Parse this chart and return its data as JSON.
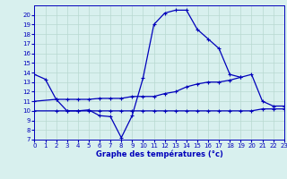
{
  "title": "Graphe des températures (°c)",
  "bg_color": "#d8f0ee",
  "line_color": "#0000bb",
  "grid_color": "#b8d8d0",
  "ylim": [
    7,
    21
  ],
  "xlim": [
    0,
    23
  ],
  "yticks": [
    7,
    8,
    9,
    10,
    11,
    12,
    13,
    14,
    15,
    16,
    17,
    18,
    19,
    20
  ],
  "xticks": [
    0,
    1,
    2,
    3,
    4,
    5,
    6,
    7,
    8,
    9,
    10,
    11,
    12,
    13,
    14,
    15,
    16,
    17,
    18,
    19,
    20,
    21,
    22,
    23
  ],
  "curve_main_x": [
    0,
    1,
    2,
    3,
    4,
    5,
    6,
    7,
    8,
    9,
    10,
    11,
    12,
    13,
    14,
    15,
    16,
    17,
    18,
    19
  ],
  "curve_main_y": [
    13.8,
    13.3,
    11.2,
    10.0,
    10.0,
    10.1,
    9.5,
    9.4,
    7.2,
    9.5,
    13.4,
    19.0,
    20.2,
    20.5,
    20.5,
    18.5,
    17.5,
    16.5,
    13.8,
    13.5
  ],
  "curve_upper_x": [
    0,
    2,
    3,
    4,
    5,
    6,
    7,
    8,
    9,
    10,
    11,
    12,
    13,
    14,
    15,
    16,
    17,
    18,
    19,
    20,
    21,
    22,
    23
  ],
  "curve_upper_y": [
    11.0,
    11.2,
    11.2,
    11.2,
    11.2,
    11.3,
    11.3,
    11.3,
    11.5,
    11.5,
    11.5,
    11.8,
    12.0,
    12.5,
    12.8,
    13.0,
    13.0,
    13.2,
    13.5,
    13.8,
    11.0,
    10.5,
    10.5
  ],
  "curve_lower_x": [
    0,
    2,
    3,
    4,
    5,
    6,
    7,
    8,
    9,
    10,
    11,
    12,
    13,
    14,
    15,
    16,
    17,
    18,
    19,
    20,
    21,
    22,
    23
  ],
  "curve_lower_y": [
    10.0,
    10.0,
    10.0,
    10.0,
    10.0,
    10.0,
    10.0,
    10.0,
    10.0,
    10.0,
    10.0,
    10.0,
    10.0,
    10.0,
    10.0,
    10.0,
    10.0,
    10.0,
    10.0,
    10.0,
    10.2,
    10.2,
    10.2
  ]
}
